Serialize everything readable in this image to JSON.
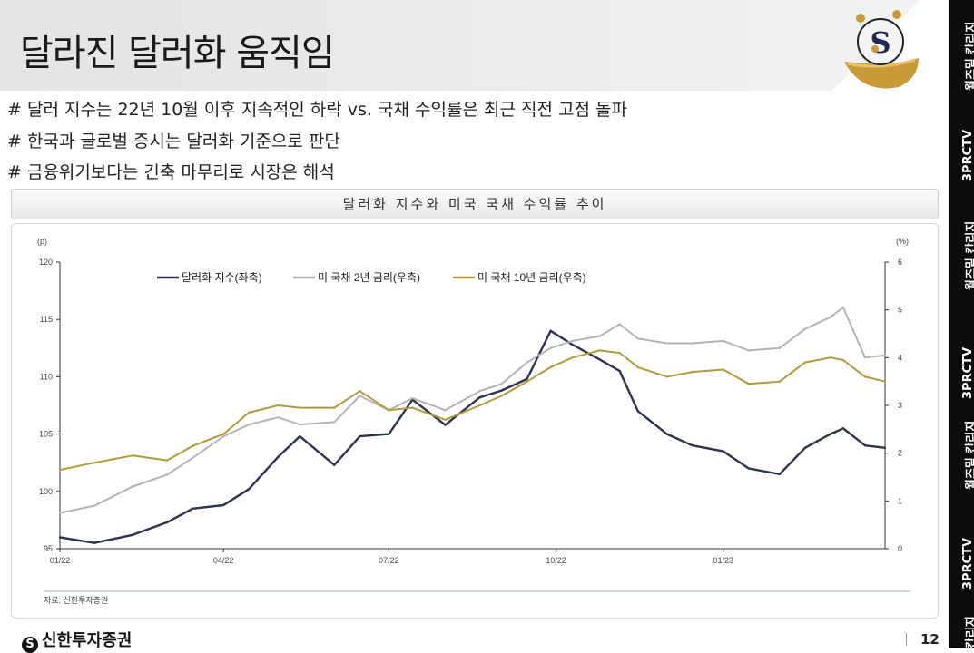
{
  "slide": {
    "title": "달라진 달러화 움직임",
    "bullets": [
      "# 달러 지수는 22년 10월 이후 지속적인 하락 vs. 국채 수익률은 최근 직전 고점 돌파",
      "# 한국과 글로벌 증시는 달러화 기준으로 판단",
      "# 금융위기보다는 긴축 마무리로 시장은 해석"
    ],
    "chart_title": "달러화 지수와 미국 국채 수익률 추이",
    "source": "자료: 신한투자증권",
    "footer_brand": "신한투자증권",
    "page_number": "12",
    "side_strip": [
      "월즈밑 칸리지",
      "3PRCTV",
      "월즈밑 칸리지",
      "3PRCTV",
      "월즈밑 칸리지",
      "3PRCTV",
      "칸리지"
    ]
  },
  "chart_data": {
    "type": "line",
    "left_unit": "(p)",
    "right_unit": "(%)",
    "left_ylim": [
      95,
      120
    ],
    "right_ylim": [
      0,
      6
    ],
    "left_ticks": [
      "120",
      "115",
      "110",
      "105",
      "100",
      "95"
    ],
    "right_ticks": [
      "6",
      "5",
      "4",
      "3",
      "2",
      "1",
      "0"
    ],
    "x_tick_labels": [
      "01/22",
      "04/22",
      "07/22",
      "10/22",
      "01/23"
    ],
    "x_tick_dates": [
      "2022-01-01",
      "2022-04-01",
      "2022-07-01",
      "2022-10-01",
      "2023-01-01"
    ],
    "x_range": [
      "2022-01-01",
      "2023-03-31"
    ],
    "grid": false,
    "legend_position": "top-left",
    "series": [
      {
        "name": "달러화 지수(좌축)",
        "axis": "left",
        "color": "#2e3450",
        "x": [
          "2022-01-01",
          "2022-01-20",
          "2022-02-10",
          "2022-03-01",
          "2022-03-15",
          "2022-04-01",
          "2022-04-15",
          "2022-05-01",
          "2022-05-13",
          "2022-06-01",
          "2022-06-15",
          "2022-07-01",
          "2022-07-14",
          "2022-08-01",
          "2022-08-20",
          "2022-09-01",
          "2022-09-15",
          "2022-09-28",
          "2022-10-10",
          "2022-10-25",
          "2022-11-05",
          "2022-11-15",
          "2022-12-01",
          "2022-12-15",
          "2023-01-01",
          "2023-01-15",
          "2023-02-01",
          "2023-02-15",
          "2023-03-01",
          "2023-03-08",
          "2023-03-20",
          "2023-03-31"
        ],
        "y": [
          96.0,
          95.5,
          96.2,
          97.3,
          98.5,
          98.8,
          100.2,
          103.0,
          104.8,
          102.3,
          104.8,
          105.0,
          108.0,
          105.8,
          108.2,
          108.8,
          109.8,
          114.0,
          112.8,
          111.5,
          110.5,
          107.0,
          105.0,
          104.0,
          103.5,
          102.0,
          101.5,
          103.8,
          105.0,
          105.5,
          104.0,
          103.8
        ]
      },
      {
        "name": "미 국채 2년 금리(우축)",
        "axis": "right",
        "color": "#b4b4b4",
        "x": [
          "2022-01-01",
          "2022-01-20",
          "2022-02-10",
          "2022-03-01",
          "2022-03-15",
          "2022-04-01",
          "2022-04-15",
          "2022-05-01",
          "2022-05-13",
          "2022-06-01",
          "2022-06-15",
          "2022-07-01",
          "2022-07-14",
          "2022-08-01",
          "2022-08-20",
          "2022-09-01",
          "2022-09-15",
          "2022-09-28",
          "2022-10-10",
          "2022-10-25",
          "2022-11-05",
          "2022-11-15",
          "2022-12-01",
          "2022-12-15",
          "2023-01-01",
          "2023-01-15",
          "2023-02-01",
          "2023-02-15",
          "2023-03-01",
          "2023-03-08",
          "2023-03-20",
          "2023-03-31"
        ],
        "y": [
          0.75,
          0.9,
          1.3,
          1.55,
          1.9,
          2.35,
          2.6,
          2.75,
          2.6,
          2.65,
          3.2,
          2.9,
          3.15,
          2.9,
          3.3,
          3.45,
          3.9,
          4.2,
          4.35,
          4.45,
          4.7,
          4.4,
          4.3,
          4.3,
          4.35,
          4.15,
          4.2,
          4.6,
          4.85,
          5.05,
          4.0,
          4.05
        ]
      },
      {
        "name": "미 국채 10년 금리(우축)",
        "axis": "right",
        "color": "#b39a3c",
        "x": [
          "2022-01-01",
          "2022-01-20",
          "2022-02-10",
          "2022-03-01",
          "2022-03-15",
          "2022-04-01",
          "2022-04-15",
          "2022-05-01",
          "2022-05-13",
          "2022-06-01",
          "2022-06-15",
          "2022-07-01",
          "2022-07-14",
          "2022-08-01",
          "2022-08-20",
          "2022-09-01",
          "2022-09-15",
          "2022-09-28",
          "2022-10-10",
          "2022-10-25",
          "2022-11-05",
          "2022-11-15",
          "2022-12-01",
          "2022-12-15",
          "2023-01-01",
          "2023-01-15",
          "2023-02-01",
          "2023-02-15",
          "2023-03-01",
          "2023-03-08",
          "2023-03-20",
          "2023-03-31"
        ],
        "y": [
          1.65,
          1.8,
          1.95,
          1.85,
          2.15,
          2.4,
          2.85,
          3.0,
          2.95,
          2.95,
          3.3,
          2.9,
          2.95,
          2.7,
          3.0,
          3.2,
          3.5,
          3.8,
          4.0,
          4.15,
          4.1,
          3.8,
          3.6,
          3.7,
          3.75,
          3.45,
          3.5,
          3.9,
          4.0,
          3.95,
          3.6,
          3.5
        ]
      }
    ]
  }
}
